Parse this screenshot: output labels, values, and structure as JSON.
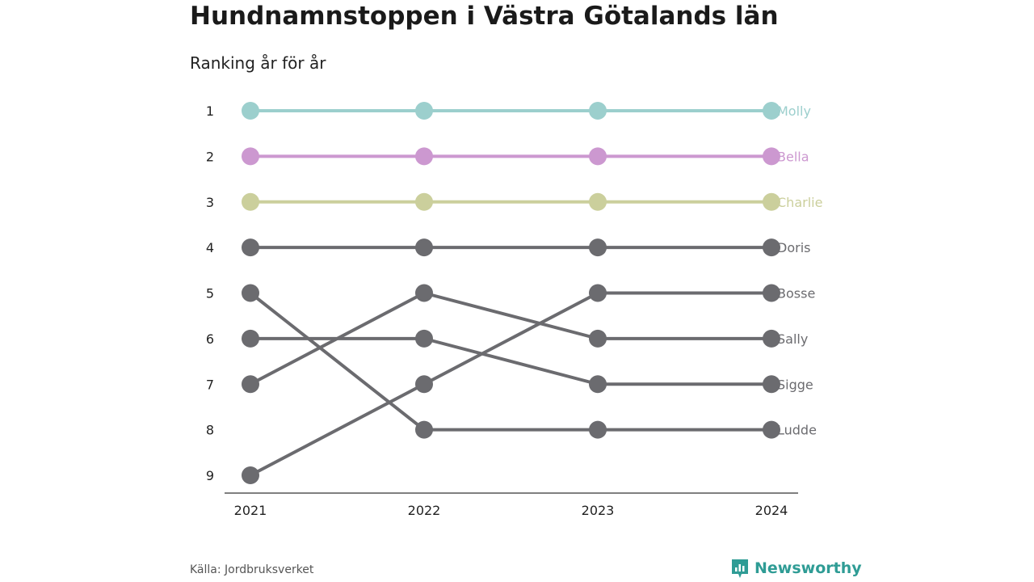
{
  "title": "Hundnamnstoppen i Västra Götalands län",
  "subtitle": "Ranking år för år",
  "source": "Källa: Jordbruksverket",
  "brand": "Newsworthy",
  "colors": {
    "accent": "#2f9c95",
    "grey": "#6b6b6f",
    "axis": "#333333"
  },
  "chart_data": {
    "type": "line",
    "x": [
      "2021",
      "2022",
      "2023",
      "2024"
    ],
    "y_ticks": [
      "1",
      "2",
      "3",
      "4",
      "5",
      "6",
      "7",
      "8",
      "9"
    ],
    "ylim": [
      1,
      9
    ],
    "y_inverted": true,
    "grid": false,
    "series": [
      {
        "name": "Molly",
        "values": [
          1,
          1,
          1,
          1
        ],
        "color": "#9ccfcd"
      },
      {
        "name": "Bella",
        "values": [
          2,
          2,
          2,
          2
        ],
        "color": "#cc98d0"
      },
      {
        "name": "Charlie",
        "values": [
          3,
          3,
          3,
          3
        ],
        "color": "#cbcf9c"
      },
      {
        "name": "Doris",
        "values": [
          4,
          4,
          4,
          4
        ],
        "color": "#6b6b6f"
      },
      {
        "name": "Bosse",
        "values": [
          9,
          7,
          5,
          5
        ],
        "color": "#6b6b6f"
      },
      {
        "name": "Sally",
        "values": [
          7,
          5,
          6,
          6
        ],
        "color": "#6b6b6f"
      },
      {
        "name": "Sigge",
        "values": [
          6,
          6,
          7,
          7
        ],
        "color": "#6b6b6f"
      },
      {
        "name": "Ludde",
        "values": [
          5,
          8,
          8,
          8
        ],
        "color": "#6b6b6f"
      }
    ]
  }
}
